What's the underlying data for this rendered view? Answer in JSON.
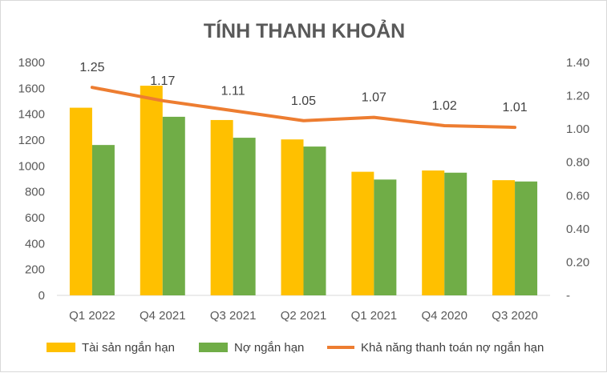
{
  "chart_data": {
    "type": "bar",
    "title": "TÍNH THANH KHOẢN",
    "categories": [
      "Q1 2022",
      "Q4 2021",
      "Q3 2021",
      "Q2 2021",
      "Q1 2021",
      "Q4 2020",
      "Q3 2020"
    ],
    "series": [
      {
        "name": "Tài sản ngắn hạn",
        "kind": "bar",
        "axis": "left",
        "color": "#FFC000",
        "values": [
          1450,
          1620,
          1355,
          1205,
          955,
          965,
          890
        ]
      },
      {
        "name": "Nợ ngắn hạn",
        "kind": "bar",
        "axis": "left",
        "color": "#70AD47",
        "values": [
          1162,
          1380,
          1218,
          1150,
          895,
          948,
          880
        ]
      },
      {
        "name": "Khả năng thanh toán nợ ngắn hạn",
        "kind": "line",
        "axis": "right",
        "color": "#ED7D31",
        "values": [
          1.25,
          1.17,
          1.11,
          1.05,
          1.07,
          1.02,
          1.01
        ],
        "labels": [
          "1.25",
          "1.17",
          "1.11",
          "1.05",
          "1.07",
          "1.02",
          "1.01"
        ]
      }
    ],
    "y_left": {
      "min": 0,
      "max": 1800,
      "step": 200,
      "ticks": [
        "0",
        "200",
        "400",
        "600",
        "800",
        "1000",
        "1200",
        "1400",
        "1600",
        "1800"
      ]
    },
    "y_right": {
      "min": 0,
      "max": 1.4,
      "step": 0.2,
      "ticks": [
        "-",
        "0.20",
        "0.40",
        "0.60",
        "0.80",
        "1.00",
        "1.20",
        "1.40"
      ]
    },
    "grid": false,
    "legend_position": "bottom"
  }
}
